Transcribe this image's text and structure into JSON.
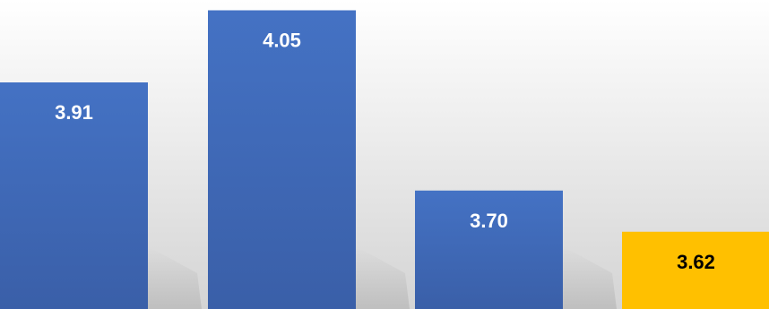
{
  "chart_data": {
    "type": "bar",
    "categories": [
      "",
      "",
      "",
      ""
    ],
    "values": [
      3.91,
      4.05,
      3.7,
      3.62
    ],
    "data_labels": [
      "3.91",
      "4.05",
      "3.70",
      "3.62"
    ],
    "ylim": [
      3.47,
      4.07
    ],
    "grid": false,
    "legend": "none",
    "title": "",
    "xlabel": "",
    "ylabel": "",
    "colors": {
      "bar_top": [
        "#4472C4",
        "#4472C4",
        "#4472C4",
        "#FFC000"
      ],
      "bar_bottom": [
        "#3A5FA8",
        "#3A5FA8",
        "#3A5FA8",
        "#FFC000"
      ],
      "label": [
        "#FFFFFF",
        "#FFFFFF",
        "#FFFFFF",
        "#000000"
      ],
      "background_top": "#FFFFFF",
      "background_bottom": "#D4D4D4"
    }
  }
}
